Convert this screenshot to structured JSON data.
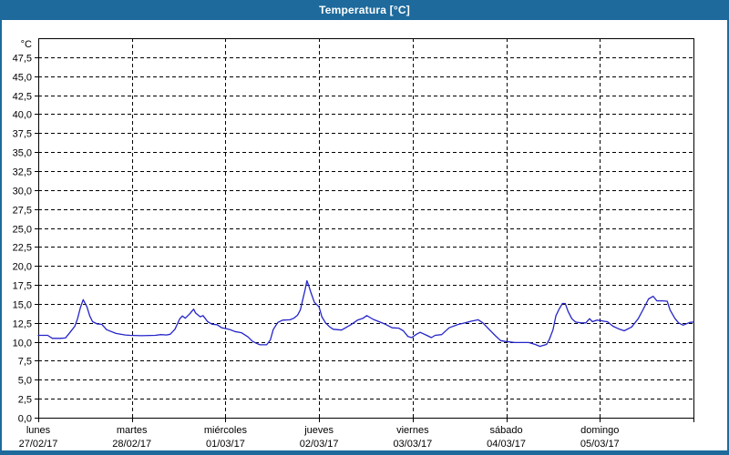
{
  "window": {
    "title": "Temperatura [°C]"
  },
  "colors": {
    "titlebar": "#1e6a9c",
    "frame": "#1e6a9c",
    "plot_border": "#000000",
    "grid": "#000000",
    "line": "#2424c8",
    "background": "#ffffff",
    "text": "#000000"
  },
  "chart_data": {
    "type": "line",
    "title": "Temperatura [°C]",
    "y_unit": "°C",
    "ylabel": "",
    "xlabel": "",
    "y_min": 0,
    "y_max": 50,
    "y_tick_step": 2.5,
    "y_tick_labels": [
      "0,0",
      "2,5",
      "5,0",
      "7,5",
      "10,0",
      "12,5",
      "15,0",
      "17,5",
      "20,0",
      "22,5",
      "25,0",
      "27,5",
      "30,0",
      "32,5",
      "35,0",
      "37,5",
      "40,0",
      "42,5",
      "45,0",
      "47,5"
    ],
    "grid": "dashed",
    "legend_position": "none",
    "x_days": [
      {
        "weekday": "lunes",
        "date": "27/02/17"
      },
      {
        "weekday": "martes",
        "date": "28/02/17"
      },
      {
        "weekday": "miércoles",
        "date": "01/03/17"
      },
      {
        "weekday": "jueves",
        "date": "02/03/17"
      },
      {
        "weekday": "viernes",
        "date": "03/03/17"
      },
      {
        "weekday": "sábado",
        "date": "04/03/17"
      },
      {
        "weekday": "domingo",
        "date": "05/03/17"
      }
    ],
    "series": [
      {
        "name": "Temperatura",
        "color": "#2424c8",
        "points": [
          [
            0.0,
            10.85
          ],
          [
            0.1,
            10.85
          ],
          [
            0.15,
            10.45
          ],
          [
            0.24,
            10.45
          ],
          [
            0.29,
            10.5
          ],
          [
            0.34,
            11.25
          ],
          [
            0.39,
            12.05
          ],
          [
            0.42,
            13.05
          ],
          [
            0.45,
            14.5
          ],
          [
            0.48,
            15.55
          ],
          [
            0.52,
            14.6
          ],
          [
            0.55,
            13.4
          ],
          [
            0.58,
            12.65
          ],
          [
            0.63,
            12.35
          ],
          [
            0.68,
            12.3
          ],
          [
            0.73,
            11.6
          ],
          [
            0.83,
            11.1
          ],
          [
            0.93,
            10.9
          ],
          [
            0.98,
            10.85
          ],
          [
            1.1,
            10.8
          ],
          [
            1.25,
            10.85
          ],
          [
            1.31,
            10.95
          ],
          [
            1.37,
            10.9
          ],
          [
            1.41,
            11.0
          ],
          [
            1.46,
            11.65
          ],
          [
            1.51,
            13.0
          ],
          [
            1.54,
            13.4
          ],
          [
            1.57,
            13.1
          ],
          [
            1.62,
            13.7
          ],
          [
            1.66,
            14.3
          ],
          [
            1.68,
            13.8
          ],
          [
            1.73,
            13.3
          ],
          [
            1.76,
            13.45
          ],
          [
            1.81,
            12.65
          ],
          [
            1.86,
            12.3
          ],
          [
            1.91,
            12.25
          ],
          [
            1.96,
            11.85
          ],
          [
            2.0,
            11.75
          ],
          [
            2.05,
            11.6
          ],
          [
            2.1,
            11.35
          ],
          [
            2.17,
            11.2
          ],
          [
            2.24,
            10.65
          ],
          [
            2.29,
            10.05
          ],
          [
            2.34,
            9.75
          ],
          [
            2.37,
            9.6
          ],
          [
            2.44,
            9.6
          ],
          [
            2.48,
            10.25
          ],
          [
            2.51,
            11.6
          ],
          [
            2.54,
            12.2
          ],
          [
            2.56,
            12.55
          ],
          [
            2.61,
            12.85
          ],
          [
            2.69,
            12.9
          ],
          [
            2.73,
            13.1
          ],
          [
            2.77,
            13.5
          ],
          [
            2.8,
            14.2
          ],
          [
            2.83,
            15.8
          ],
          [
            2.85,
            16.8
          ],
          [
            2.87,
            18.05
          ],
          [
            2.89,
            17.4
          ],
          [
            2.91,
            16.6
          ],
          [
            2.95,
            15.2
          ],
          [
            2.98,
            14.85
          ],
          [
            3.0,
            14.6
          ],
          [
            3.03,
            13.3
          ],
          [
            3.07,
            12.5
          ],
          [
            3.11,
            12.0
          ],
          [
            3.15,
            11.65
          ],
          [
            3.24,
            11.55
          ],
          [
            3.34,
            12.25
          ],
          [
            3.41,
            12.85
          ],
          [
            3.47,
            13.1
          ],
          [
            3.51,
            13.45
          ],
          [
            3.58,
            12.95
          ],
          [
            3.65,
            12.6
          ],
          [
            3.71,
            12.3
          ],
          [
            3.78,
            11.85
          ],
          [
            3.85,
            11.8
          ],
          [
            3.9,
            11.45
          ],
          [
            3.95,
            10.7
          ],
          [
            3.99,
            10.55
          ],
          [
            4.04,
            11.0
          ],
          [
            4.08,
            11.25
          ],
          [
            4.15,
            10.85
          ],
          [
            4.2,
            10.55
          ],
          [
            4.24,
            10.85
          ],
          [
            4.31,
            10.95
          ],
          [
            4.39,
            11.85
          ],
          [
            4.49,
            12.3
          ],
          [
            4.56,
            12.5
          ],
          [
            4.62,
            12.7
          ],
          [
            4.7,
            12.9
          ],
          [
            4.75,
            12.5
          ],
          [
            4.82,
            11.6
          ],
          [
            4.88,
            10.85
          ],
          [
            4.94,
            10.15
          ],
          [
            4.99,
            10.05
          ],
          [
            5.09,
            9.9
          ],
          [
            5.24,
            9.9
          ],
          [
            5.31,
            9.65
          ],
          [
            5.36,
            9.4
          ],
          [
            5.43,
            9.65
          ],
          [
            5.46,
            10.3
          ],
          [
            5.5,
            11.6
          ],
          [
            5.53,
            13.4
          ],
          [
            5.56,
            14.2
          ],
          [
            5.6,
            15.05
          ],
          [
            5.63,
            15.05
          ],
          [
            5.66,
            14.0
          ],
          [
            5.7,
            13.05
          ],
          [
            5.74,
            12.6
          ],
          [
            5.8,
            12.5
          ],
          [
            5.85,
            12.5
          ],
          [
            5.89,
            13.05
          ],
          [
            5.92,
            12.65
          ],
          [
            5.97,
            12.85
          ],
          [
            6.0,
            12.8
          ],
          [
            6.05,
            12.7
          ],
          [
            6.08,
            12.65
          ],
          [
            6.14,
            12.05
          ],
          [
            6.21,
            11.65
          ],
          [
            6.26,
            11.45
          ],
          [
            6.34,
            11.95
          ],
          [
            6.41,
            13.05
          ],
          [
            6.47,
            14.45
          ],
          [
            6.52,
            15.65
          ],
          [
            6.57,
            16.0
          ],
          [
            6.61,
            15.4
          ],
          [
            6.67,
            15.4
          ],
          [
            6.72,
            15.35
          ],
          [
            6.75,
            14.2
          ],
          [
            6.8,
            13.1
          ],
          [
            6.84,
            12.5
          ],
          [
            6.89,
            12.2
          ],
          [
            6.96,
            12.55
          ],
          [
            7.0,
            12.6
          ]
        ]
      }
    ]
  }
}
